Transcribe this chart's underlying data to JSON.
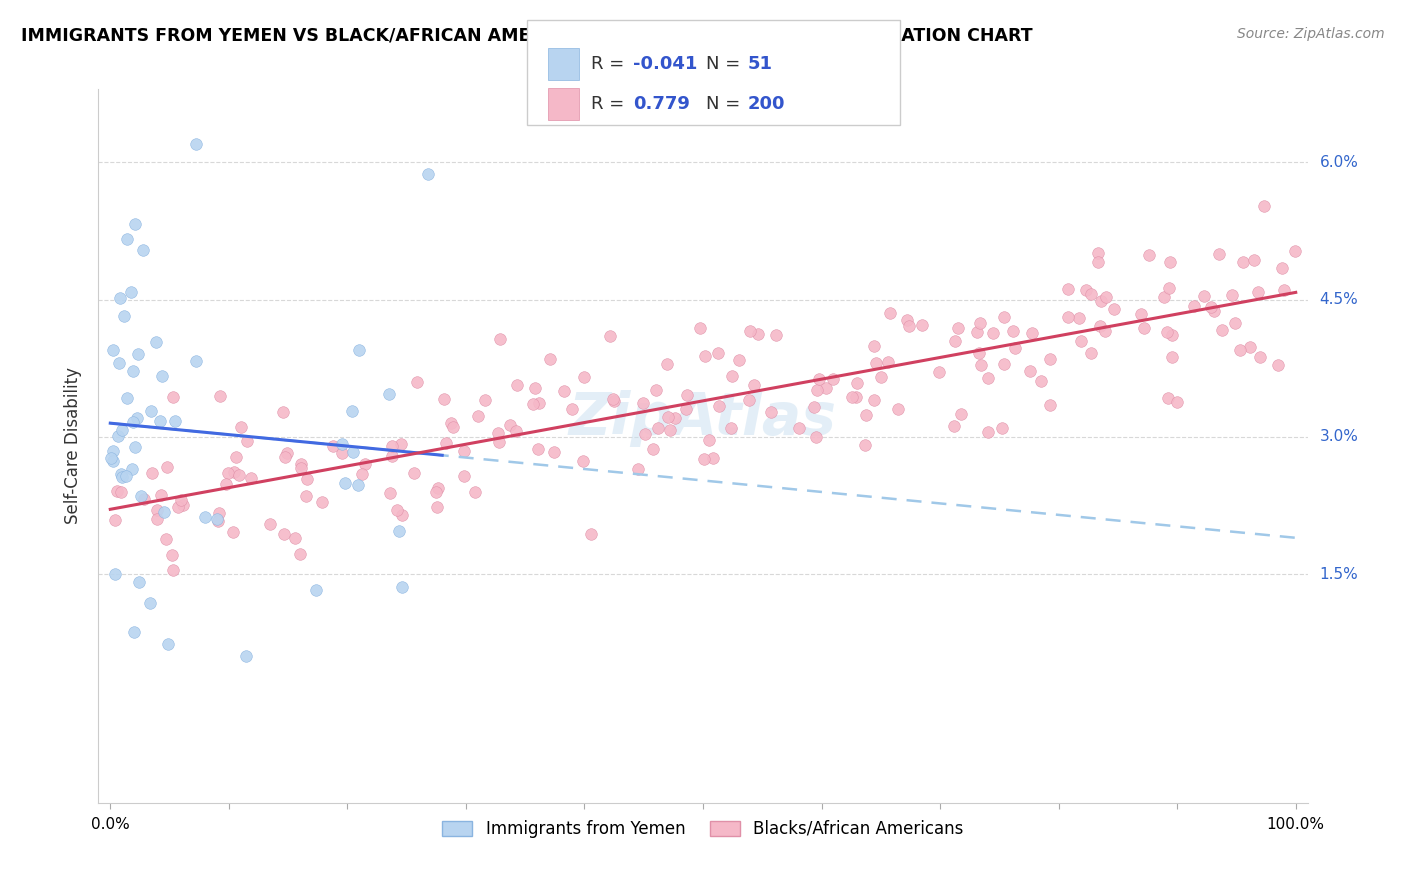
{
  "title": "IMMIGRANTS FROM YEMEN VS BLACK/AFRICAN AMERICAN SELF-CARE DISABILITY CORRELATION CHART",
  "source": "Source: ZipAtlas.com",
  "ylabel": "Self-Care Disability",
  "legend_label1": "Immigrants from Yemen",
  "legend_label2": "Blacks/African Americans",
  "R1": "-0.041",
  "N1": "51",
  "R2": "0.779",
  "N2": "200",
  "color_blue_fill": "#b8d4f0",
  "color_blue_edge": "#8ab4e0",
  "color_pink_fill": "#f5b8c8",
  "color_pink_edge": "#e090a8",
  "color_blue_line": "#4169e1",
  "color_pink_line": "#d04060",
  "color_blue_dash": "#a0c8e8",
  "ytick_values": [
    0.015,
    0.03,
    0.045,
    0.06
  ],
  "ytick_labels": [
    "1.5%",
    "3.0%",
    "4.5%",
    "6.0%"
  ],
  "ymin": -0.01,
  "ymax": 0.068,
  "xmin": -1,
  "xmax": 101,
  "watermark_text": "ZipAtlas",
  "watermark_color": "#c8dff0",
  "watermark_alpha": 0.5
}
